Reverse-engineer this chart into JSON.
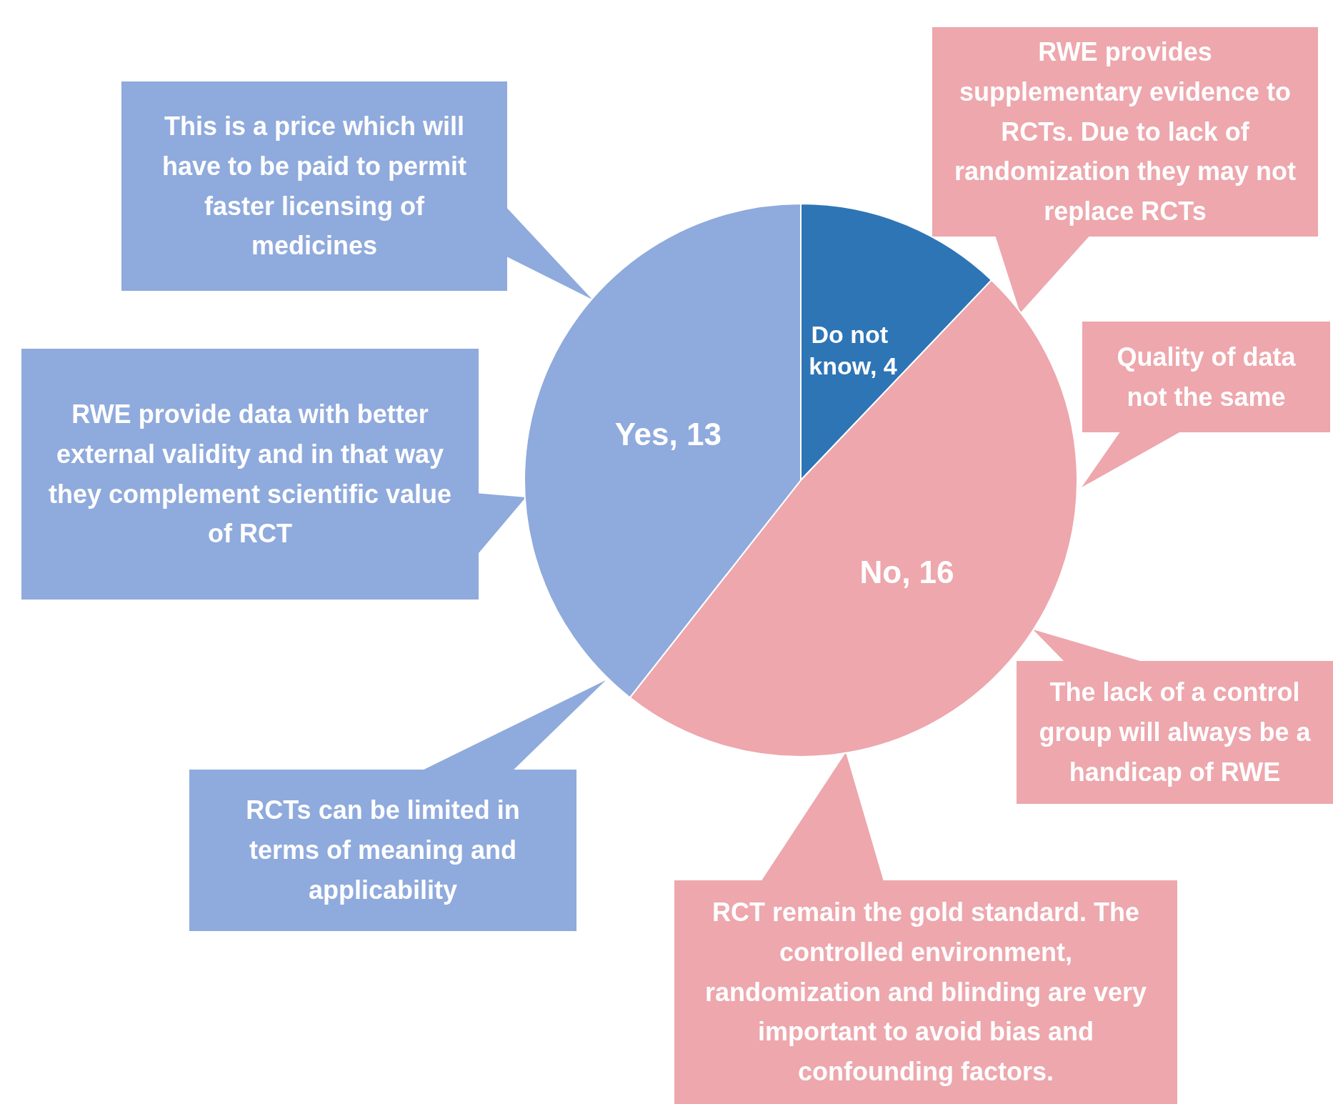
{
  "chart_data": {
    "type": "pie",
    "categories": [
      null,
      null,
      null
    ],
    "values": [
      4,
      16,
      13
    ],
    "colors": [
      "#2e75b6",
      "#eda7ad",
      "#8faadc"
    ],
    "value_labels": [
      "Do not know, 4",
      "No, 16",
      "Yes, 13"
    ],
    "annotations": [
      "This is a  price which will have to be paid to permit faster licensing of medicines",
      "RWE provide data with better external validity and in that way they complement scientific value of RCT",
      "RCTs can be limited in terms of meaning and applicability",
      "RWE provides supplementary evidence to RCTs. Due to lack of randomization they may not replace RCTs",
      "Quality of data not the same",
      "The lack of a control group will always be a handicap of RWE",
      "RCT remain the gold standard. The controlled environment, randomization and blinding are very important to avoid bias and confounding factors."
    ]
  }
}
